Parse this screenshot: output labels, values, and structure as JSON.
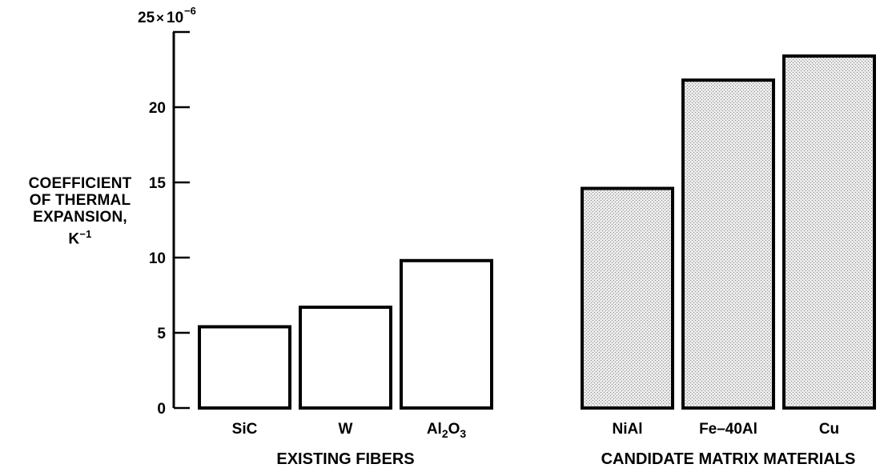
{
  "chart_data": {
    "type": "bar",
    "title": "",
    "ylabel": {
      "lines": [
        "COEFFICIENT",
        "OF THERMAL",
        "EXPANSION,"
      ],
      "unit": "K",
      "unit_exp": "−1"
    },
    "y_axis_top_label": {
      "mantissa": "25",
      "times": "×",
      "base": "10",
      "exponent": "−6"
    },
    "ylim": [
      0,
      25
    ],
    "yticks": [
      0,
      5,
      10,
      15,
      20
    ],
    "grid": false,
    "groups": [
      {
        "label": "EXISTING FIBERS",
        "fill": "plain"
      },
      {
        "label": "CANDIDATE MATRIX MATERIALS",
        "fill": "stippled"
      }
    ],
    "categories": [
      {
        "label": "SiC",
        "group": 0
      },
      {
        "label": "W",
        "group": 0
      },
      {
        "label": "Al2O3",
        "base": "Al",
        "sub1": "2",
        "mid": "O",
        "sub2": "3",
        "group": 0
      },
      {
        "label": "NiAl",
        "group": 1
      },
      {
        "label": "Fe–40Al",
        "group": 1
      },
      {
        "label": "Cu",
        "group": 1
      }
    ],
    "values": [
      5.4,
      6.7,
      9.8,
      14.6,
      21.8,
      23.4
    ]
  },
  "colors": {
    "bar_fill_plain": "#ffffff",
    "bar_fill_stippled": "#e6e6e6",
    "stroke": "#000000"
  }
}
